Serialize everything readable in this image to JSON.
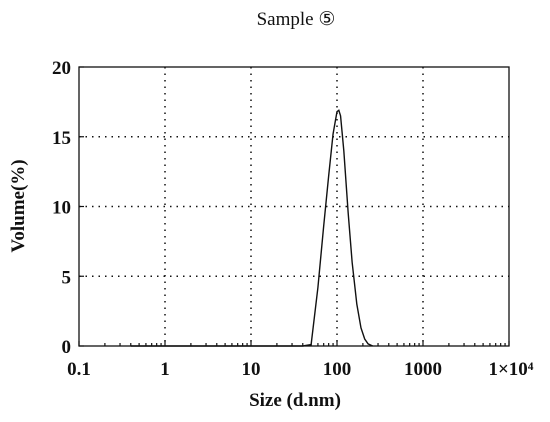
{
  "chart_data": {
    "type": "line",
    "title": "Sample ⑤",
    "xlabel": "Size (d.nm)",
    "ylabel": "Volume(%)",
    "x_scale": "log",
    "xlim": [
      0.1,
      10000
    ],
    "ylim": [
      0,
      20
    ],
    "x_ticks": [
      0.1,
      1,
      10,
      100,
      1000,
      10000
    ],
    "x_tick_labels": [
      "0.1",
      "1",
      "10",
      "100",
      "1000",
      "1×10⁴"
    ],
    "y_ticks": [
      0,
      5,
      10,
      15,
      20
    ],
    "y_tick_labels": [
      "0",
      "5",
      "10",
      "15",
      "20"
    ],
    "grid": true,
    "series": [
      {
        "x": [
          0.4,
          40,
          50,
          60,
          70,
          80,
          90,
          100,
          105,
          110,
          120,
          135,
          150,
          170,
          190,
          210,
          230,
          260
        ],
        "y": [
          0,
          0,
          0.1,
          4.2,
          8.6,
          12.2,
          15.2,
          16.8,
          16.9,
          16.5,
          14.0,
          9.5,
          6.0,
          3.0,
          1.3,
          0.5,
          0.15,
          0
        ]
      }
    ]
  }
}
